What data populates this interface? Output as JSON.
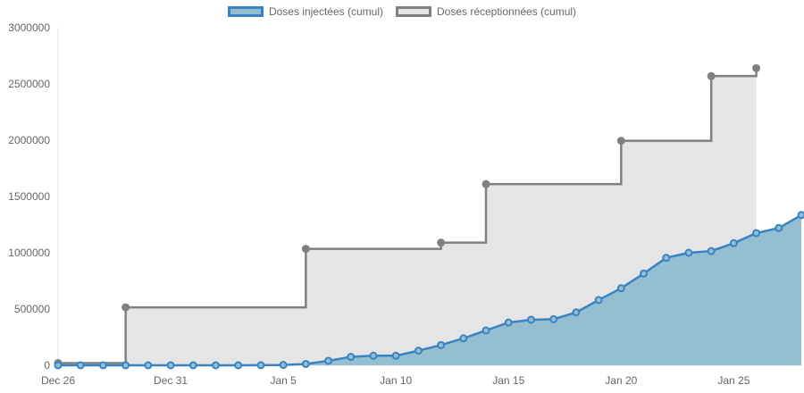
{
  "chart_data": {
    "type": "area",
    "legend_position": "top-center",
    "grid": false,
    "colors": {
      "injected_line": "#3a83c1",
      "injected_fill": "#94bfd3",
      "received_line": "#808080",
      "received_fill": "#e5e5e5",
      "axis_text": "#666666"
    },
    "ylim": [
      0,
      3000000
    ],
    "y_ticks": [
      {
        "value": 0,
        "label": "0"
      },
      {
        "value": 500000,
        "label": "500000"
      },
      {
        "value": 1000000,
        "label": "1000000"
      },
      {
        "value": 1500000,
        "label": "1500000"
      },
      {
        "value": 2000000,
        "label": "2000000"
      },
      {
        "value": 2500000,
        "label": "2500000"
      },
      {
        "value": 3000000,
        "label": "3000000"
      }
    ],
    "x_range": [
      "2020-12-26",
      "2021-01-28"
    ],
    "x_ticks": [
      {
        "date": "2020-12-26",
        "label": "Dec 26"
      },
      {
        "date": "2020-12-31",
        "label": "Dec 31"
      },
      {
        "date": "2021-01-05",
        "label": "Jan 5"
      },
      {
        "date": "2021-01-10",
        "label": "Jan 10"
      },
      {
        "date": "2021-01-15",
        "label": "Jan 15"
      },
      {
        "date": "2021-01-20",
        "label": "Jan 20"
      },
      {
        "date": "2021-01-25",
        "label": "Jan 25"
      }
    ],
    "series": [
      {
        "name": "Doses injectées (cumul)",
        "style": "line-area",
        "points": [
          [
            "2020-12-26",
            0
          ],
          [
            "2020-12-27",
            0
          ],
          [
            "2020-12-28",
            0
          ],
          [
            "2020-12-29",
            0
          ],
          [
            "2020-12-30",
            0
          ],
          [
            "2020-12-31",
            0
          ],
          [
            "2021-01-01",
            0
          ],
          [
            "2021-01-02",
            0
          ],
          [
            "2021-01-03",
            0
          ],
          [
            "2021-01-04",
            1000
          ],
          [
            "2021-01-05",
            3000
          ],
          [
            "2021-01-06",
            12000
          ],
          [
            "2021-01-07",
            40000
          ],
          [
            "2021-01-08",
            75000
          ],
          [
            "2021-01-09",
            85000
          ],
          [
            "2021-01-10",
            85000
          ],
          [
            "2021-01-11",
            130000
          ],
          [
            "2021-01-12",
            180000
          ],
          [
            "2021-01-13",
            240000
          ],
          [
            "2021-01-14",
            310000
          ],
          [
            "2021-01-15",
            380000
          ],
          [
            "2021-01-16",
            405000
          ],
          [
            "2021-01-17",
            410000
          ],
          [
            "2021-01-18",
            470000
          ],
          [
            "2021-01-19",
            580000
          ],
          [
            "2021-01-20",
            685000
          ],
          [
            "2021-01-21",
            815000
          ],
          [
            "2021-01-22",
            955000
          ],
          [
            "2021-01-23",
            1000000
          ],
          [
            "2021-01-24",
            1015000
          ],
          [
            "2021-01-25",
            1085000
          ],
          [
            "2021-01-26",
            1175000
          ],
          [
            "2021-01-27",
            1220000
          ],
          [
            "2021-01-28",
            1335000
          ]
        ]
      },
      {
        "name": "Doses réceptionnées (cumul)",
        "style": "step-area",
        "points": [
          [
            "2020-12-26",
            20000
          ],
          [
            "2020-12-29",
            515000
          ],
          [
            "2021-01-06",
            1035000
          ],
          [
            "2021-01-12",
            1090000
          ],
          [
            "2021-01-14",
            1610000
          ],
          [
            "2021-01-20",
            1995000
          ],
          [
            "2021-01-24",
            2570000
          ],
          [
            "2021-01-26",
            2640000
          ]
        ]
      }
    ]
  }
}
